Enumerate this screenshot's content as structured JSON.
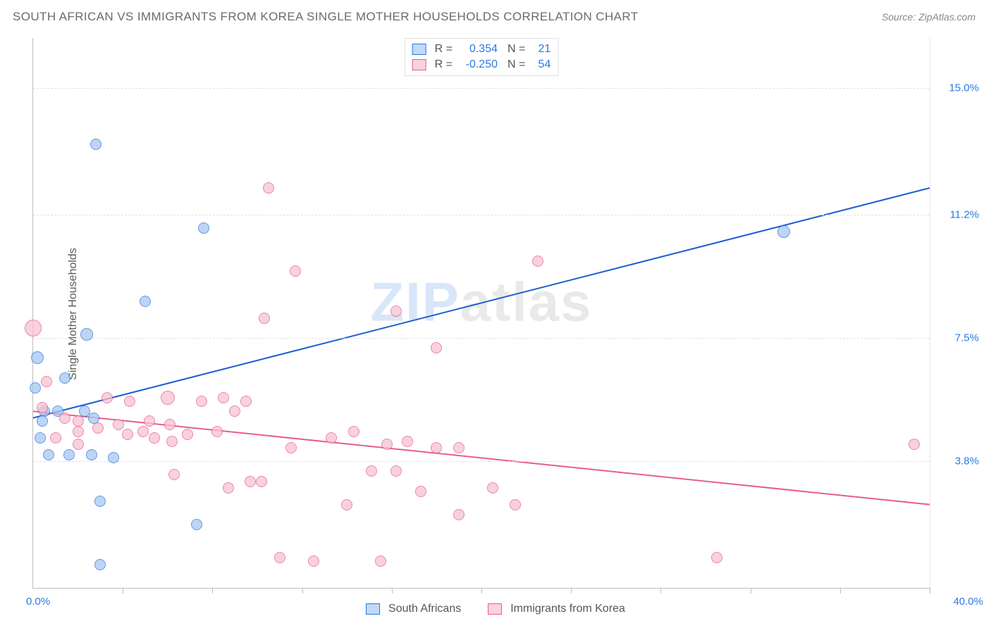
{
  "title": "SOUTH AFRICAN VS IMMIGRANTS FROM KOREA SINGLE MOTHER HOUSEHOLDS CORRELATION CHART",
  "source": "Source: ZipAtlas.com",
  "ylabel": "Single Mother Households",
  "watermark_zip": "ZIP",
  "watermark_atlas": "atlas",
  "chart": {
    "type": "scatter-correlation",
    "xlim": [
      0.0,
      40.0
    ],
    "ylim": [
      0.0,
      16.5
    ],
    "x_axis_start_label": "0.0%",
    "x_axis_end_label": "40.0%",
    "x_label_color": "#2b78e4",
    "y_axis_ticks": [
      {
        "v": 3.8,
        "label": "3.8%"
      },
      {
        "v": 7.5,
        "label": "7.5%"
      },
      {
        "v": 11.2,
        "label": "11.2%"
      },
      {
        "v": 15.0,
        "label": "15.0%"
      }
    ],
    "y_axis_label_color": "#2b78e4",
    "grid_color": "#e0e0e0",
    "axis_color": "#bdbdbd",
    "background_color": "#ffffff",
    "xtick_marks": [
      4.0,
      8.0,
      12.0,
      16.0,
      20.0,
      24.0,
      28.0,
      32.0,
      36.0,
      40.0
    ],
    "marker_radius": 8,
    "marker_border_width": 1.5,
    "marker_fill_opacity": 0.35,
    "series": [
      {
        "id": "south_africans",
        "legend_label": "South Africans",
        "color_stroke": "#2b78e4",
        "color_fill": "#a8c7f0",
        "legend_swatch_fill": "#c2d8f5",
        "R_label": "R =",
        "R_value": "0.354",
        "N_label": "N =",
        "N_value": "21",
        "trend": {
          "y_at_x0": 5.1,
          "y_at_x40": 12.0,
          "stroke": "#1a5fd0",
          "stroke_width": 2
        },
        "points": [
          {
            "x": 2.8,
            "y": 13.3,
            "r": 8
          },
          {
            "x": 7.6,
            "y": 10.8,
            "r": 8
          },
          {
            "x": 5.0,
            "y": 8.6,
            "r": 8
          },
          {
            "x": 2.4,
            "y": 7.6,
            "r": 9
          },
          {
            "x": 0.2,
            "y": 6.9,
            "r": 9
          },
          {
            "x": 1.4,
            "y": 6.3,
            "r": 8
          },
          {
            "x": 0.5,
            "y": 5.3,
            "r": 8
          },
          {
            "x": 1.1,
            "y": 5.3,
            "r": 8
          },
          {
            "x": 2.3,
            "y": 5.3,
            "r": 8
          },
          {
            "x": 0.4,
            "y": 5.0,
            "r": 8
          },
          {
            "x": 2.7,
            "y": 5.1,
            "r": 8
          },
          {
            "x": 0.7,
            "y": 4.0,
            "r": 8
          },
          {
            "x": 1.6,
            "y": 4.0,
            "r": 8
          },
          {
            "x": 2.6,
            "y": 4.0,
            "r": 8
          },
          {
            "x": 3.6,
            "y": 3.9,
            "r": 8
          },
          {
            "x": 3.0,
            "y": 2.6,
            "r": 8
          },
          {
            "x": 7.3,
            "y": 1.9,
            "r": 8
          },
          {
            "x": 3.0,
            "y": 0.7,
            "r": 8
          },
          {
            "x": 33.5,
            "y": 10.7,
            "r": 9
          },
          {
            "x": 0.1,
            "y": 6.0,
            "r": 8
          },
          {
            "x": 0.3,
            "y": 4.5,
            "r": 8
          }
        ]
      },
      {
        "id": "immigrants_korea",
        "legend_label": "Immigrants from Korea",
        "color_stroke": "#e85e89",
        "color_fill": "#f6c2d2",
        "legend_swatch_fill": "#fad1de",
        "R_label": "R =",
        "R_value": "-0.250",
        "N_label": "N =",
        "N_value": "54",
        "trend": {
          "y_at_x0": 5.3,
          "y_at_x40": 2.5,
          "stroke": "#e85e89",
          "stroke_width": 2
        },
        "points": [
          {
            "x": 10.5,
            "y": 12.0,
            "r": 8
          },
          {
            "x": 11.7,
            "y": 9.5,
            "r": 8
          },
          {
            "x": 22.5,
            "y": 9.8,
            "r": 8
          },
          {
            "x": 16.2,
            "y": 8.3,
            "r": 8
          },
          {
            "x": 10.3,
            "y": 8.1,
            "r": 8
          },
          {
            "x": 18.0,
            "y": 7.2,
            "r": 8
          },
          {
            "x": 0.0,
            "y": 7.8,
            "r": 12
          },
          {
            "x": 0.6,
            "y": 6.2,
            "r": 8
          },
          {
            "x": 3.3,
            "y": 5.7,
            "r": 8
          },
          {
            "x": 4.3,
            "y": 5.6,
            "r": 8
          },
          {
            "x": 6.0,
            "y": 5.7,
            "r": 10
          },
          {
            "x": 7.5,
            "y": 5.6,
            "r": 8
          },
          {
            "x": 8.5,
            "y": 5.7,
            "r": 8
          },
          {
            "x": 9.0,
            "y": 5.3,
            "r": 8
          },
          {
            "x": 9.5,
            "y": 5.6,
            "r": 8
          },
          {
            "x": 1.4,
            "y": 5.1,
            "r": 8
          },
          {
            "x": 0.4,
            "y": 5.4,
            "r": 8
          },
          {
            "x": 2.0,
            "y": 5.0,
            "r": 8
          },
          {
            "x": 2.0,
            "y": 4.7,
            "r": 8
          },
          {
            "x": 2.9,
            "y": 4.8,
            "r": 8
          },
          {
            "x": 3.8,
            "y": 4.9,
            "r": 8
          },
          {
            "x": 4.2,
            "y": 4.6,
            "r": 8
          },
          {
            "x": 4.9,
            "y": 4.7,
            "r": 8
          },
          {
            "x": 5.4,
            "y": 4.5,
            "r": 8
          },
          {
            "x": 6.1,
            "y": 4.9,
            "r": 8
          },
          {
            "x": 6.2,
            "y": 4.4,
            "r": 8
          },
          {
            "x": 6.9,
            "y": 4.6,
            "r": 8
          },
          {
            "x": 8.2,
            "y": 4.7,
            "r": 8
          },
          {
            "x": 13.3,
            "y": 4.5,
            "r": 8
          },
          {
            "x": 14.3,
            "y": 4.7,
            "r": 8
          },
          {
            "x": 15.8,
            "y": 4.3,
            "r": 8
          },
          {
            "x": 16.7,
            "y": 4.4,
            "r": 8
          },
          {
            "x": 18.0,
            "y": 4.2,
            "r": 8
          },
          {
            "x": 19.0,
            "y": 4.2,
            "r": 8
          },
          {
            "x": 11.5,
            "y": 4.2,
            "r": 8
          },
          {
            "x": 39.3,
            "y": 4.3,
            "r": 8
          },
          {
            "x": 6.3,
            "y": 3.4,
            "r": 8
          },
          {
            "x": 8.7,
            "y": 3.0,
            "r": 8
          },
          {
            "x": 9.7,
            "y": 3.2,
            "r": 8
          },
          {
            "x": 10.2,
            "y": 3.2,
            "r": 8
          },
          {
            "x": 14.0,
            "y": 2.5,
            "r": 8
          },
          {
            "x": 15.1,
            "y": 3.5,
            "r": 8
          },
          {
            "x": 16.2,
            "y": 3.5,
            "r": 8
          },
          {
            "x": 17.3,
            "y": 2.9,
            "r": 8
          },
          {
            "x": 20.5,
            "y": 3.0,
            "r": 8
          },
          {
            "x": 19.0,
            "y": 2.2,
            "r": 8
          },
          {
            "x": 21.5,
            "y": 2.5,
            "r": 8
          },
          {
            "x": 11.0,
            "y": 0.9,
            "r": 8
          },
          {
            "x": 12.5,
            "y": 0.8,
            "r": 8
          },
          {
            "x": 15.5,
            "y": 0.8,
            "r": 8
          },
          {
            "x": 30.5,
            "y": 0.9,
            "r": 8
          },
          {
            "x": 2.0,
            "y": 4.3,
            "r": 8
          },
          {
            "x": 1.0,
            "y": 4.5,
            "r": 8
          },
          {
            "x": 5.2,
            "y": 5.0,
            "r": 8
          }
        ]
      }
    ]
  },
  "legend_bottom": {
    "items": [
      {
        "label": "South Africans",
        "swatch_fill": "#c2d8f5",
        "swatch_border": "#2b78e4"
      },
      {
        "label": "Immigrants from Korea",
        "swatch_fill": "#fad1de",
        "swatch_border": "#e85e89"
      }
    ]
  }
}
